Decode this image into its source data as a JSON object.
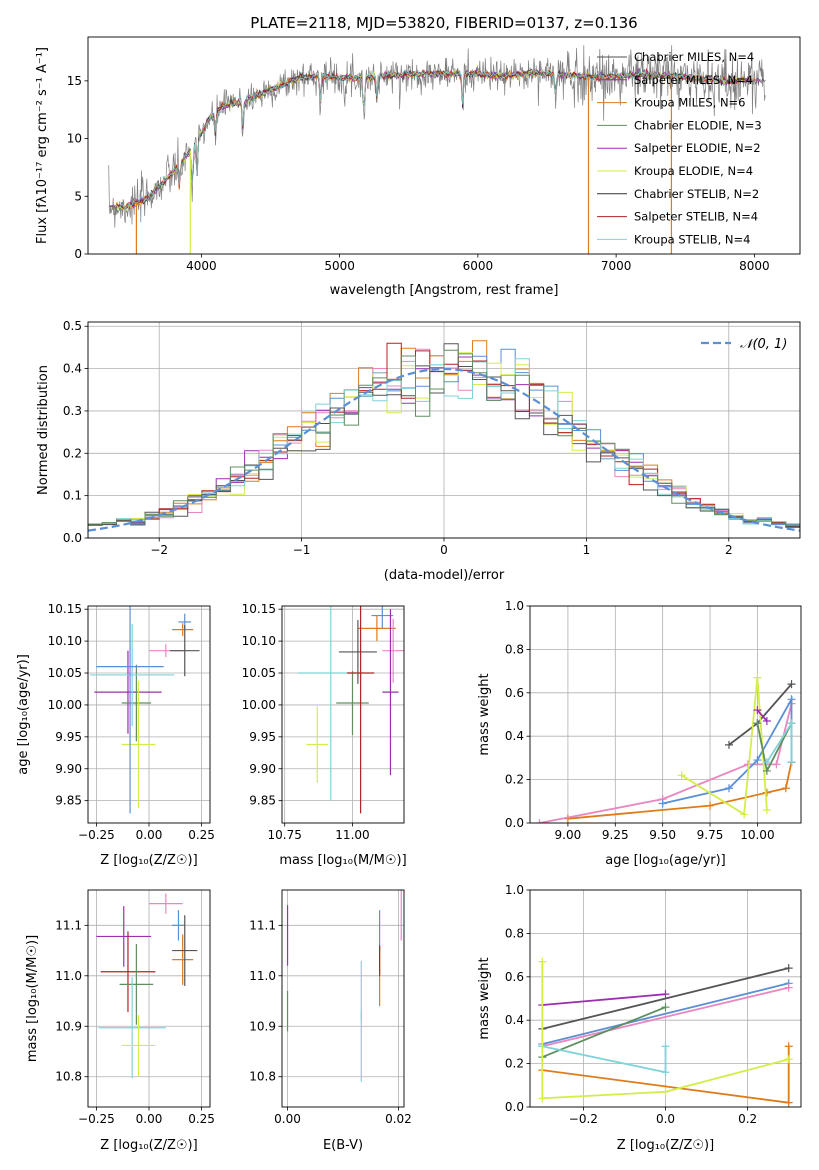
{
  "chart_data": [
    {
      "id": "spectrum",
      "type": "line",
      "title": "PLATE=2118, MJD=53820, FIBERID=0137, z=0.136",
      "xlabel": "wavelength [Angstrom, rest frame]",
      "ylabel": "Flux [fλ10⁻¹⁷ erg cm⁻² s⁻¹ A⁻¹]",
      "xlim": [
        3180,
        8330
      ],
      "ylim": [
        0,
        18.8
      ],
      "xticks": [
        4000,
        5000,
        6000,
        7000,
        8000
      ],
      "yticks": [
        0,
        5,
        10,
        15
      ],
      "legend_position": "upper-right",
      "series": [
        {
          "name": "Chabrier MILES, N_SSP=4",
          "color": "#4f4f4f"
        },
        {
          "name": "Salpeter MILES, N_SSP=4",
          "color": "#9b2fb0"
        },
        {
          "name": "Kroupa MILES, N_SSP=6",
          "color": "#e07b1a"
        },
        {
          "name": "Chabrier ELODIE, N_SSP=3",
          "color": "#5f8f5f"
        },
        {
          "name": "Salpeter ELODIE, N_SSP=2",
          "color": "#9b2fb0"
        },
        {
          "name": "Kroupa ELODIE, N_SSP=4",
          "color": "#d4ed4a"
        },
        {
          "name": "Chabrier STELIB, N_SSP=2",
          "color": "#333333"
        },
        {
          "name": "Salpeter STELIB, N_SSP=4",
          "color": "#b22222"
        },
        {
          "name": "Kroupa STELIB, N_SSP=4",
          "color": "#7fd3d8"
        }
      ],
      "spectrum_anchor_points": {
        "x": [
          3330,
          3450,
          3600,
          3750,
          3850,
          3950,
          4050,
          4150,
          4300,
          4500,
          4700,
          4860,
          5000,
          5200,
          5400,
          5600,
          5800,
          6000,
          6200,
          6400,
          6600,
          6800,
          7000,
          7200,
          7400,
          7600,
          7800,
          8000,
          8080
        ],
        "y": [
          4.2,
          4.0,
          4.8,
          6.5,
          7.8,
          9.5,
          11.5,
          12.8,
          13.2,
          14.2,
          15.2,
          15.5,
          15.2,
          15.3,
          15.5,
          15.6,
          15.6,
          15.6,
          15.4,
          15.7,
          15.5,
          15.3,
          15.4,
          15.6,
          15.4,
          15.2,
          15.0,
          15.1,
          15.0
        ]
      }
    },
    {
      "id": "residuals",
      "type": "histogram",
      "xlabel": "(data-model)/error",
      "ylabel": "Normed distribution",
      "xlim": [
        -2.5,
        2.5
      ],
      "ylim": [
        0,
        0.51
      ],
      "xticks": [
        -2,
        -1,
        0,
        1,
        2
      ],
      "yticks": [
        0.0,
        0.1,
        0.2,
        0.3,
        0.4,
        0.5
      ],
      "legend": "𝒩(0, 1)",
      "gaussian_color": "#5b8fd6",
      "bin_width": 0.1
    },
    {
      "id": "age-vs-Z",
      "type": "errorbar",
      "xlabel": "Z [log₁₀(Z/Z☉)]",
      "ylabel": "age  [log₁₀(age/yr)]",
      "xlim": [
        -0.29,
        0.29
      ],
      "ylim": [
        9.815,
        10.155
      ],
      "xticks": [
        "−0.25",
        "0.00",
        "0.25"
      ],
      "yticks": [
        "9.85",
        "9.90",
        "9.95",
        "10.00",
        "10.05",
        "10.10",
        "10.15"
      ]
    },
    {
      "id": "age-vs-mass",
      "type": "errorbar",
      "xlabel": "mass [log₁₀(M/M☉)]",
      "ylabel": "",
      "xlim": [
        10.74,
        11.19
      ],
      "ylim": [
        9.815,
        10.155
      ],
      "xticks": [
        "10.75",
        "11.00"
      ],
      "yticks": [
        "9.85",
        "9.90",
        "9.95",
        "10.00",
        "10.05",
        "10.10",
        "10.15"
      ]
    },
    {
      "id": "mass-weight-vs-age",
      "type": "line",
      "xlabel": "age  [log₁₀(age/yr)]",
      "ylabel": "mass weight",
      "xlim": [
        8.8,
        10.23
      ],
      "ylim": [
        0,
        1
      ],
      "xticks": [
        "9.00",
        "9.25",
        "9.50",
        "9.75",
        "10.00"
      ],
      "yticks": [
        "0.0",
        "0.2",
        "0.4",
        "0.6",
        "0.8",
        "1.0"
      ],
      "series": [
        {
          "color": "#e07b1a",
          "points": [
            [
              9.0,
              0.02
            ],
            [
              9.75,
              0.08
            ],
            [
              10.05,
              0.14
            ],
            [
              10.15,
              0.16
            ],
            [
              10.18,
              0.28
            ]
          ]
        },
        {
          "color": "#ea86c0",
          "points": [
            [
              8.85,
              0.0
            ],
            [
              9.5,
              0.11
            ],
            [
              9.95,
              0.27
            ],
            [
              10.1,
              0.27
            ],
            [
              10.18,
              0.55
            ]
          ]
        },
        {
          "color": "#5b8fd6",
          "points": [
            [
              9.5,
              0.09
            ],
            [
              9.85,
              0.16
            ],
            [
              10.0,
              0.29
            ],
            [
              10.18,
              0.57
            ],
            [
              10.18,
              0.28
            ]
          ]
        },
        {
          "color": "#555555",
          "points": [
            [
              9.85,
              0.36
            ],
            [
              10.0,
              0.46
            ],
            [
              10.18,
              0.64
            ]
          ]
        },
        {
          "color": "#d4ed4a",
          "points": [
            [
              9.6,
              0.22
            ],
            [
              9.93,
              0.04
            ],
            [
              10.0,
              0.67
            ],
            [
              10.05,
              0.06
            ]
          ]
        },
        {
          "color": "#9b2fb0",
          "points": [
            [
              10.0,
              0.52
            ],
            [
              10.05,
              0.47
            ]
          ]
        },
        {
          "color": "#5f8f5f",
          "points": [
            [
              10.0,
              0.46
            ],
            [
              10.05,
              0.24
            ],
            [
              10.18,
              0.46
            ]
          ]
        },
        {
          "color": "#7fd3d8",
          "points": [
            [
              10.05,
              0.28
            ],
            [
              10.18,
              0.46
            ],
            [
              10.18,
              0.28
            ]
          ]
        }
      ]
    },
    {
      "id": "mass-vs-Z",
      "type": "errorbar",
      "xlabel": "Z [log₁₀(Z/Z☉)]",
      "ylabel": "mass [log₁₀(M/M☉)]",
      "xlim": [
        -0.29,
        0.29
      ],
      "ylim": [
        10.74,
        11.17
      ],
      "xticks": [
        "−0.25",
        "0.00",
        "0.25"
      ],
      "yticks": [
        "10.8",
        "10.9",
        "11.0",
        "11.1"
      ]
    },
    {
      "id": "mass-vs-ebv",
      "type": "errorbar",
      "xlabel": "E(B-V)",
      "ylabel": "",
      "xlim": [
        -0.001,
        0.021
      ],
      "ylim": [
        10.74,
        11.17
      ],
      "xticks": [
        "0.00",
        "0.02"
      ],
      "yticks": [
        "10.8",
        "10.9",
        "11.0",
        "11.1"
      ]
    },
    {
      "id": "mass-weight-vs-Z",
      "type": "line",
      "xlabel": "Z [log₁₀(Z/Z☉)]",
      "ylabel": "mass weight",
      "xlim": [
        -0.33,
        0.33
      ],
      "ylim": [
        0,
        1
      ],
      "xticks": [
        "−0.2",
        "0.0",
        "0.2"
      ],
      "yticks": [
        "0.0",
        "0.2",
        "0.4",
        "0.6",
        "0.8",
        "1.0"
      ],
      "series": [
        {
          "color": "#555555",
          "points": [
            [
              -0.3,
              0.36
            ],
            [
              0.3,
              0.64
            ]
          ]
        },
        {
          "color": "#9b2fb0",
          "points": [
            [
              -0.3,
              0.47
            ],
            [
              0.0,
              0.52
            ]
          ]
        },
        {
          "color": "#5b8fd6",
          "points": [
            [
              -0.3,
              0.29
            ],
            [
              0.3,
              0.57
            ]
          ]
        },
        {
          "color": "#ea86c0",
          "points": [
            [
              -0.3,
              0.28
            ],
            [
              0.3,
              0.55
            ]
          ]
        },
        {
          "color": "#5f8f5f",
          "points": [
            [
              -0.3,
              0.23
            ],
            [
              0.0,
              0.46
            ]
          ]
        },
        {
          "color": "#7fd3d8",
          "points": [
            [
              -0.3,
              0.28
            ],
            [
              0.0,
              0.16
            ],
            [
              0.0,
              0.28
            ]
          ]
        },
        {
          "color": "#e07b1a",
          "points": [
            [
              -0.3,
              0.17
            ],
            [
              0.3,
              0.02
            ],
            [
              0.3,
              0.28
            ]
          ]
        },
        {
          "color": "#d4ed4a",
          "points": [
            [
              -0.3,
              0.67
            ],
            [
              -0.3,
              0.04
            ],
            [
              0.0,
              0.07
            ],
            [
              0.3,
              0.22
            ]
          ]
        }
      ]
    }
  ]
}
